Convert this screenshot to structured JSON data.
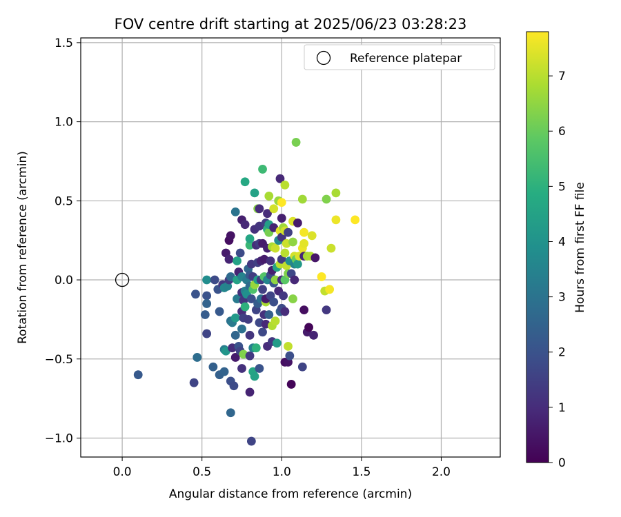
{
  "chart_data": {
    "type": "scatter",
    "title": "FOV centre drift starting at 2025/06/23 03:28:23",
    "xlabel": "Angular distance from reference (arcmin)",
    "ylabel": "Rotation from reference (arcmin)",
    "xlim": [
      -0.26,
      2.37
    ],
    "ylim": [
      -1.12,
      1.53
    ],
    "xticks": [
      0.0,
      0.5,
      1.0,
      1.5,
      2.0
    ],
    "yticks": [
      -1.0,
      -0.5,
      0.0,
      0.5,
      1.0,
      1.5
    ],
    "xtick_labels": [
      "0.0",
      "0.5",
      "1.0",
      "1.5",
      "2.0"
    ],
    "ytick_labels": [
      "−1.0",
      "−0.5",
      "0.0",
      "0.5",
      "1.0",
      "1.5"
    ],
    "grid": true,
    "legend": {
      "position": "top-right",
      "entries": [
        {
          "label": "Reference platepar",
          "marker": "open-circle"
        }
      ]
    },
    "reference_point": {
      "x": 0.0,
      "y": 0.0
    },
    "colorbar": {
      "label": "Hours from first FF file",
      "colormap": "viridis",
      "range": [
        0,
        7.8
      ],
      "ticks": [
        0,
        1,
        2,
        3,
        4,
        5,
        6,
        7
      ],
      "tick_labels": [
        "0",
        "1",
        "2",
        "3",
        "4",
        "5",
        "6",
        "7"
      ]
    },
    "series": [
      {
        "points": [
          {
            "x": 0.1,
            "y": -0.6,
            "c": 2.2
          },
          {
            "x": 0.46,
            "y": -0.09,
            "c": 2.0
          },
          {
            "x": 0.47,
            "y": -0.49,
            "c": 2.8
          },
          {
            "x": 0.45,
            "y": -0.65,
            "c": 1.6
          },
          {
            "x": 0.52,
            "y": -0.22,
            "c": 2.3
          },
          {
            "x": 0.53,
            "y": 0.0,
            "c": 3.8
          },
          {
            "x": 0.53,
            "y": -0.1,
            "c": 2.0
          },
          {
            "x": 0.53,
            "y": -0.15,
            "c": 2.5
          },
          {
            "x": 0.53,
            "y": -0.34,
            "c": 1.6
          },
          {
            "x": 0.57,
            "y": -0.55,
            "c": 2.4
          },
          {
            "x": 0.58,
            "y": 0.0,
            "c": 1.8
          },
          {
            "x": 0.6,
            "y": -0.06,
            "c": 2.0
          },
          {
            "x": 0.61,
            "y": -0.2,
            "c": 2.2
          },
          {
            "x": 0.61,
            "y": -0.6,
            "c": 2.4
          },
          {
            "x": 0.63,
            "y": -0.03,
            "c": 1.3
          },
          {
            "x": 0.64,
            "y": -0.05,
            "c": 3.6
          },
          {
            "x": 0.64,
            "y": -0.44,
            "c": 3.3
          },
          {
            "x": 0.64,
            "y": -0.58,
            "c": 2.5
          },
          {
            "x": 0.65,
            "y": 0.17,
            "c": 0.6
          },
          {
            "x": 0.65,
            "y": -0.45,
            "c": 4.1
          },
          {
            "x": 0.66,
            "y": -0.04,
            "c": 3.5
          },
          {
            "x": 0.67,
            "y": 0.0,
            "c": 1.4
          },
          {
            "x": 0.67,
            "y": 0.13,
            "c": 0.8
          },
          {
            "x": 0.67,
            "y": 0.25,
            "c": 0.3
          },
          {
            "x": 0.68,
            "y": 0.28,
            "c": 0.4
          },
          {
            "x": 0.68,
            "y": -0.64,
            "c": 1.9
          },
          {
            "x": 0.68,
            "y": -0.84,
            "c": 2.6
          },
          {
            "x": 0.68,
            "y": 0.02,
            "c": 2.7
          },
          {
            "x": 0.68,
            "y": -0.26,
            "c": 2.9
          },
          {
            "x": 0.69,
            "y": -0.43,
            "c": 1.0
          },
          {
            "x": 0.69,
            "y": -0.27,
            "c": 3.2
          },
          {
            "x": 0.7,
            "y": -0.67,
            "c": 1.8
          },
          {
            "x": 0.71,
            "y": -0.24,
            "c": 4.2
          },
          {
            "x": 0.71,
            "y": -0.49,
            "c": 0.6
          },
          {
            "x": 0.71,
            "y": 0.43,
            "c": 3.0
          },
          {
            "x": 0.71,
            "y": -0.35,
            "c": 2.6
          },
          {
            "x": 0.72,
            "y": 0.12,
            "c": 4.5
          },
          {
            "x": 0.72,
            "y": 0.0,
            "c": 4.5
          },
          {
            "x": 0.72,
            "y": -0.12,
            "c": 3.2
          },
          {
            "x": 0.73,
            "y": -0.42,
            "c": 2.0
          },
          {
            "x": 0.73,
            "y": 0.05,
            "c": 0.8
          },
          {
            "x": 0.74,
            "y": 0.17,
            "c": 1.8
          },
          {
            "x": 0.74,
            "y": -0.45,
            "c": 1.6
          },
          {
            "x": 0.75,
            "y": 0.02,
            "c": 3.5
          },
          {
            "x": 0.75,
            "y": -0.08,
            "c": 1.1
          },
          {
            "x": 0.75,
            "y": -0.2,
            "c": 1.0
          },
          {
            "x": 0.75,
            "y": 0.38,
            "c": 0.7
          },
          {
            "x": 0.75,
            "y": -0.31,
            "c": 2.9
          },
          {
            "x": 0.75,
            "y": -0.56,
            "c": 1.1
          },
          {
            "x": 0.76,
            "y": -0.13,
            "c": 1.2
          },
          {
            "x": 0.76,
            "y": -0.24,
            "c": 1.5
          },
          {
            "x": 0.76,
            "y": -0.47,
            "c": 6.3
          },
          {
            "x": 0.77,
            "y": 0.62,
            "c": 4.7
          },
          {
            "x": 0.77,
            "y": 0.35,
            "c": 0.9
          },
          {
            "x": 0.77,
            "y": -0.07,
            "c": 3.4
          },
          {
            "x": 0.77,
            "y": -0.17,
            "c": 5.0
          },
          {
            "x": 0.78,
            "y": 0.0,
            "c": 3.2
          },
          {
            "x": 0.78,
            "y": -0.09,
            "c": 3.9
          },
          {
            "x": 0.79,
            "y": 0.07,
            "c": 2.6
          },
          {
            "x": 0.79,
            "y": -0.25,
            "c": 1.4
          },
          {
            "x": 0.8,
            "y": 0.22,
            "c": 5.2
          },
          {
            "x": 0.8,
            "y": 0.26,
            "c": 4.6
          },
          {
            "x": 0.8,
            "y": 0.03,
            "c": 2.2
          },
          {
            "x": 0.8,
            "y": -0.04,
            "c": 2.7
          },
          {
            "x": 0.8,
            "y": -0.35,
            "c": 1.2
          },
          {
            "x": 0.8,
            "y": -0.48,
            "c": 1.3
          },
          {
            "x": 0.8,
            "y": -0.71,
            "c": 0.8
          },
          {
            "x": 0.81,
            "y": -1.02,
            "c": 1.6
          },
          {
            "x": 0.81,
            "y": 0.1,
            "c": 1.3
          },
          {
            "x": 0.81,
            "y": -0.12,
            "c": 1.9
          },
          {
            "x": 0.82,
            "y": -0.58,
            "c": 4.6
          },
          {
            "x": 0.82,
            "y": 0.02,
            "c": 1.4
          },
          {
            "x": 0.82,
            "y": -0.43,
            "c": 3.4
          },
          {
            "x": 0.82,
            "y": -0.06,
            "c": 5.6
          },
          {
            "x": 0.83,
            "y": 0.55,
            "c": 4.5
          },
          {
            "x": 0.83,
            "y": 0.32,
            "c": 1.1
          },
          {
            "x": 0.83,
            "y": -0.61,
            "c": 4.5
          },
          {
            "x": 0.83,
            "y": -0.03,
            "c": 6.6
          },
          {
            "x": 0.84,
            "y": -0.19,
            "c": 1.6
          },
          {
            "x": 0.84,
            "y": 0.22,
            "c": 1.0
          },
          {
            "x": 0.84,
            "y": -0.43,
            "c": 5.0
          },
          {
            "x": 0.85,
            "y": 0.45,
            "c": 6.4
          },
          {
            "x": 0.85,
            "y": 0.11,
            "c": 1.5
          },
          {
            "x": 0.85,
            "y": 0.0,
            "c": 4.3
          },
          {
            "x": 0.85,
            "y": -0.15,
            "c": 2.3
          },
          {
            "x": 0.86,
            "y": 0.45,
            "c": 1.0
          },
          {
            "x": 0.86,
            "y": -0.27,
            "c": 1.7
          },
          {
            "x": 0.86,
            "y": -0.56,
            "c": 2.0
          },
          {
            "x": 0.86,
            "y": 0.23,
            "c": 1.4
          },
          {
            "x": 0.86,
            "y": 0.34,
            "c": 1.2
          },
          {
            "x": 0.87,
            "y": 0.12,
            "c": 0.8
          },
          {
            "x": 0.87,
            "y": -0.12,
            "c": 2.9
          },
          {
            "x": 0.87,
            "y": 0.0,
            "c": 1.3
          },
          {
            "x": 0.88,
            "y": 0.7,
            "c": 5.3
          },
          {
            "x": 0.88,
            "y": 0.23,
            "c": 0.6
          },
          {
            "x": 0.88,
            "y": -0.06,
            "c": 1.5
          },
          {
            "x": 0.88,
            "y": -0.33,
            "c": 1.7
          },
          {
            "x": 0.89,
            "y": 0.13,
            "c": 0.6
          },
          {
            "x": 0.89,
            "y": -0.22,
            "c": 1.1
          },
          {
            "x": 0.89,
            "y": 0.02,
            "c": 5.7
          },
          {
            "x": 0.9,
            "y": 0.36,
            "c": 1.5
          },
          {
            "x": 0.9,
            "y": -0.14,
            "c": 6.8
          },
          {
            "x": 0.9,
            "y": -0.12,
            "c": 0.6
          },
          {
            "x": 0.9,
            "y": -0.28,
            "c": 0.9
          },
          {
            "x": 0.91,
            "y": 0.42,
            "c": 1.0
          },
          {
            "x": 0.91,
            "y": 0.32,
            "c": 5.0
          },
          {
            "x": 0.91,
            "y": 0.2,
            "c": 0.7
          },
          {
            "x": 0.91,
            "y": 0.0,
            "c": 3.6
          },
          {
            "x": 0.91,
            "y": -0.42,
            "c": 1.0
          },
          {
            "x": 0.92,
            "y": 0.53,
            "c": 6.8
          },
          {
            "x": 0.92,
            "y": 0.3,
            "c": 6.2
          },
          {
            "x": 0.92,
            "y": 0.35,
            "c": 4.4
          },
          {
            "x": 0.92,
            "y": -0.22,
            "c": 2.4
          },
          {
            "x": 0.93,
            "y": 0.12,
            "c": 1.1
          },
          {
            "x": 0.93,
            "y": 0.03,
            "c": 1.8
          },
          {
            "x": 0.93,
            "y": -0.1,
            "c": 1.6
          },
          {
            "x": 0.94,
            "y": 0.06,
            "c": 0.7
          },
          {
            "x": 0.94,
            "y": -0.29,
            "c": 6.9
          },
          {
            "x": 0.94,
            "y": -0.39,
            "c": 1.3
          },
          {
            "x": 0.94,
            "y": 0.21,
            "c": 6.8
          },
          {
            "x": 0.95,
            "y": 0.45,
            "c": 7.3
          },
          {
            "x": 0.95,
            "y": 0.33,
            "c": 0.8
          },
          {
            "x": 0.95,
            "y": -0.02,
            "c": 2.1
          },
          {
            "x": 0.95,
            "y": -0.14,
            "c": 1.9
          },
          {
            "x": 0.96,
            "y": 0.2,
            "c": 7.2
          },
          {
            "x": 0.96,
            "y": 0.0,
            "c": 6.5
          },
          {
            "x": 0.96,
            "y": -0.26,
            "c": 7.0
          },
          {
            "x": 0.97,
            "y": -0.4,
            "c": 4.3
          },
          {
            "x": 0.97,
            "y": 0.08,
            "c": 4.6
          },
          {
            "x": 0.98,
            "y": 0.5,
            "c": 6.6
          },
          {
            "x": 0.98,
            "y": 0.25,
            "c": 3.7
          },
          {
            "x": 0.98,
            "y": -0.07,
            "c": 0.9
          },
          {
            "x": 0.99,
            "y": 0.64,
            "c": 0.9
          },
          {
            "x": 0.99,
            "y": 0.31,
            "c": 7.5
          },
          {
            "x": 0.99,
            "y": 0.1,
            "c": 7.0
          },
          {
            "x": 0.99,
            "y": -0.2,
            "c": 2.4
          },
          {
            "x": 1.0,
            "y": 0.49,
            "c": 7.8
          },
          {
            "x": 1.0,
            "y": 0.39,
            "c": 0.7
          },
          {
            "x": 1.0,
            "y": 0.27,
            "c": 1.2
          },
          {
            "x": 1.0,
            "y": 0.13,
            "c": 1.4
          },
          {
            "x": 1.0,
            "y": 0.0,
            "c": 1.0
          },
          {
            "x": 1.0,
            "y": -0.18,
            "c": 1.8
          },
          {
            "x": 1.01,
            "y": 0.33,
            "c": 6.7
          },
          {
            "x": 1.01,
            "y": -0.1,
            "c": 1.3
          },
          {
            "x": 1.02,
            "y": -0.52,
            "c": 0.3
          },
          {
            "x": 1.02,
            "y": 0.6,
            "c": 7.0
          },
          {
            "x": 1.02,
            "y": 0.31,
            "c": 7.3
          },
          {
            "x": 1.02,
            "y": 0.17,
            "c": 7.0
          },
          {
            "x": 1.02,
            "y": 0.0,
            "c": 5.8
          },
          {
            "x": 1.02,
            "y": -0.2,
            "c": 1.0
          },
          {
            "x": 1.03,
            "y": 0.23,
            "c": 7.2
          },
          {
            "x": 1.03,
            "y": 0.09,
            "c": 7.1
          },
          {
            "x": 1.04,
            "y": -0.52,
            "c": 0.4
          },
          {
            "x": 1.04,
            "y": -0.42,
            "c": 7.1
          },
          {
            "x": 1.04,
            "y": 0.3,
            "c": 1.5
          },
          {
            "x": 1.04,
            "y": 0.04,
            "c": 6.3
          },
          {
            "x": 1.05,
            "y": 0.12,
            "c": 3.9
          },
          {
            "x": 1.05,
            "y": -0.48,
            "c": 1.9
          },
          {
            "x": 1.06,
            "y": -0.66,
            "c": 0.1
          },
          {
            "x": 1.06,
            "y": 0.04,
            "c": 1.7
          },
          {
            "x": 1.07,
            "y": 0.37,
            "c": 7.4
          },
          {
            "x": 1.07,
            "y": 0.24,
            "c": 6.5
          },
          {
            "x": 1.07,
            "y": -0.12,
            "c": 6.4
          },
          {
            "x": 1.08,
            "y": 0.15,
            "c": 7.3
          },
          {
            "x": 1.08,
            "y": 0.1,
            "c": 3.5
          },
          {
            "x": 1.08,
            "y": 0.0,
            "c": 0.9
          },
          {
            "x": 1.09,
            "y": 0.87,
            "c": 6.2
          },
          {
            "x": 1.09,
            "y": 0.13,
            "c": 6.0
          },
          {
            "x": 1.1,
            "y": 0.36,
            "c": 0.6
          },
          {
            "x": 1.1,
            "y": 0.1,
            "c": 4.2
          },
          {
            "x": 1.11,
            "y": 0.15,
            "c": 7.4
          },
          {
            "x": 1.13,
            "y": -0.55,
            "c": 1.6
          },
          {
            "x": 1.13,
            "y": 0.51,
            "c": 6.7
          },
          {
            "x": 1.13,
            "y": 0.2,
            "c": 7.6
          },
          {
            "x": 1.14,
            "y": 0.3,
            "c": 7.7
          },
          {
            "x": 1.14,
            "y": -0.19,
            "c": 0.3
          },
          {
            "x": 1.14,
            "y": 0.15,
            "c": 0.9
          },
          {
            "x": 1.14,
            "y": 0.23,
            "c": 7.5
          },
          {
            "x": 1.16,
            "y": -0.33,
            "c": 0.6
          },
          {
            "x": 1.16,
            "y": 0.15,
            "c": 6.8
          },
          {
            "x": 1.17,
            "y": -0.3,
            "c": 0.1
          },
          {
            "x": 1.18,
            "y": 0.15,
            "c": 6.9
          },
          {
            "x": 1.19,
            "y": 0.28,
            "c": 7.4
          },
          {
            "x": 1.2,
            "y": -0.35,
            "c": 0.8
          },
          {
            "x": 1.21,
            "y": 0.14,
            "c": 0.5
          },
          {
            "x": 1.25,
            "y": 0.02,
            "c": 7.8
          },
          {
            "x": 1.27,
            "y": -0.07,
            "c": 7.1
          },
          {
            "x": 1.28,
            "y": 0.51,
            "c": 6.3
          },
          {
            "x": 1.28,
            "y": -0.19,
            "c": 1.3
          },
          {
            "x": 1.3,
            "y": -0.06,
            "c": 7.7
          },
          {
            "x": 1.31,
            "y": 0.2,
            "c": 7.2
          },
          {
            "x": 1.34,
            "y": 0.55,
            "c": 6.8
          },
          {
            "x": 1.34,
            "y": 0.38,
            "c": 7.6
          },
          {
            "x": 1.46,
            "y": 0.38,
            "c": 7.8
          }
        ]
      }
    ]
  }
}
